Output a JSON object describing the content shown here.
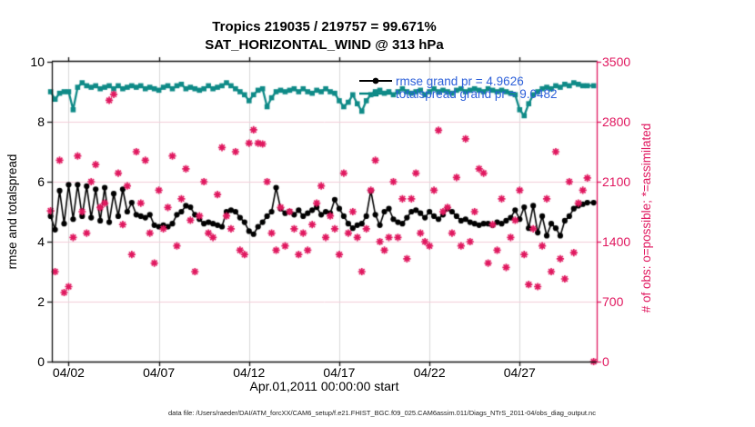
{
  "footer_text": "data file: /Users/raeder/DAI/ATM_forcXX/CAM6_setup/f.e21.FHIST_BGC.f09_025.CAM6assim.011/Diags_NTrS_2011-04/obs_diag_output.nc",
  "colors": {
    "rmse_line": "#000000",
    "totalspread_line": "#0e8a87",
    "obs_marker": "#e0185f",
    "right_axis": "#e0185f",
    "legend_text": "#2b5fd9",
    "grid_vertical": "#d9d9d9",
    "grid_horizontal": "#f2cdd9"
  },
  "chart_data": {
    "type": "line",
    "title": "Tropics 219035 / 219757 = 99.671%",
    "subtitle": "SAT_HORIZONTAL_WIND @ 313 hPa",
    "xlabel": "Apr.01,2011 00:00:00 start",
    "ylabel_left": "rmse and totalspread",
    "ylabel_right": "# of obs: o=possible; *=assimilated",
    "grid": true,
    "legend_position": "top-right-inside",
    "xlim": [
      1.07,
      31.27
    ],
    "ylim_left": [
      0,
      10
    ],
    "yticks_left": [
      0,
      2,
      4,
      6,
      8,
      10
    ],
    "ylim_right": [
      0,
      3500
    ],
    "yticks_right": [
      0,
      700,
      1400,
      2100,
      2800,
      3500
    ],
    "xticks": [
      {
        "day": 2,
        "label": "04/02"
      },
      {
        "day": 7,
        "label": "04/07"
      },
      {
        "day": 12,
        "label": "04/12"
      },
      {
        "day": 17,
        "label": "04/17"
      },
      {
        "day": 22,
        "label": "04/22"
      },
      {
        "day": 27,
        "label": "04/27"
      }
    ],
    "x_unit": "day of April 2011, 6-hourly bins",
    "x": [
      1,
      1.25,
      1.5,
      1.75,
      2,
      2.25,
      2.5,
      2.75,
      3,
      3.25,
      3.5,
      3.75,
      4,
      4.25,
      4.5,
      4.75,
      5,
      5.25,
      5.5,
      5.75,
      6,
      6.25,
      6.5,
      6.75,
      7,
      7.25,
      7.5,
      7.75,
      8,
      8.25,
      8.5,
      8.75,
      9,
      9.25,
      9.5,
      9.75,
      10,
      10.25,
      10.5,
      10.75,
      11,
      11.25,
      11.5,
      11.75,
      12,
      12.25,
      12.5,
      12.75,
      13,
      13.25,
      13.5,
      13.75,
      14,
      14.25,
      14.5,
      14.75,
      15,
      15.25,
      15.5,
      15.75,
      16,
      16.25,
      16.5,
      16.75,
      17,
      17.25,
      17.5,
      17.75,
      18,
      18.25,
      18.5,
      18.75,
      19,
      19.25,
      19.5,
      19.75,
      20,
      20.25,
      20.5,
      20.75,
      21,
      21.25,
      21.5,
      21.75,
      22,
      22.25,
      22.5,
      22.75,
      23,
      23.25,
      23.5,
      23.75,
      24,
      24.25,
      24.5,
      24.75,
      25,
      25.25,
      25.5,
      25.75,
      26,
      26.25,
      26.5,
      26.75,
      27,
      27.25,
      27.5,
      27.75,
      28,
      28.25,
      28.5,
      28.75,
      29,
      29.25,
      29.5,
      29.75,
      30,
      30.25,
      30.5,
      30.75,
      31.1
    ],
    "series": [
      {
        "name": "totalspread",
        "legend_label": "totalspread grand pr = 9.0482",
        "grand_mean": 9.0482,
        "axis": "left",
        "color": "#0e8a87",
        "marker": "square",
        "line": true,
        "values": [
          9.0,
          8.75,
          8.95,
          9.0,
          9.0,
          8.4,
          9.15,
          9.3,
          9.2,
          9.15,
          9.2,
          9.1,
          9.15,
          9.2,
          9.1,
          9.2,
          9.1,
          9.15,
          9.2,
          9.15,
          9.2,
          9.1,
          9.15,
          9.1,
          9.05,
          9.15,
          9.2,
          9.1,
          9.2,
          9.25,
          9.1,
          9.15,
          9.1,
          9.05,
          9.1,
          9.2,
          9.1,
          9.15,
          9.2,
          9.3,
          9.2,
          9.1,
          9.0,
          8.9,
          8.7,
          8.9,
          9.05,
          9.1,
          8.5,
          8.8,
          9.0,
          9.05,
          9.0,
          9.05,
          9.1,
          9.0,
          9.1,
          9.0,
          8.95,
          9.05,
          9.0,
          9.1,
          9.0,
          8.95,
          8.7,
          8.5,
          8.65,
          8.9,
          8.6,
          8.35,
          8.7,
          8.9,
          9.0,
          9.05,
          8.95,
          9.0,
          8.9,
          9.0,
          9.1,
          9.0,
          8.95,
          9.0,
          9.05,
          8.9,
          9.0,
          9.1,
          9.0,
          9.05,
          9.0,
          8.95,
          9.05,
          9.1,
          9.0,
          9.05,
          9.1,
          9.05,
          9.0,
          9.1,
          9.05,
          9.0,
          9.05,
          9.0,
          8.95,
          8.9,
          8.4,
          8.2,
          8.6,
          8.9,
          9.0,
          9.1,
          9.15,
          9.1,
          9.2,
          9.15,
          9.25,
          9.2,
          9.3,
          9.25,
          9.2,
          9.2,
          9.2
        ]
      },
      {
        "name": "rmse",
        "legend_label": "rmse grand pr = 4.9626",
        "grand_mean": 4.9626,
        "axis": "left",
        "color": "#000000",
        "marker": "circle",
        "line": true,
        "values": [
          4.85,
          4.4,
          5.7,
          4.6,
          5.9,
          4.75,
          5.9,
          4.85,
          5.85,
          4.8,
          5.75,
          4.7,
          5.8,
          4.65,
          5.6,
          4.85,
          5.75,
          5.0,
          5.3,
          4.9,
          4.85,
          4.8,
          4.9,
          4.55,
          4.5,
          4.55,
          4.5,
          4.6,
          4.9,
          5.0,
          5.2,
          5.15,
          4.9,
          4.75,
          4.6,
          4.65,
          4.6,
          4.55,
          4.5,
          5.0,
          5.05,
          5.0,
          4.8,
          4.65,
          4.35,
          4.25,
          4.5,
          4.65,
          4.85,
          5.0,
          5.8,
          5.1,
          4.95,
          5.0,
          4.9,
          5.05,
          4.85,
          4.95,
          5.05,
          5.15,
          4.9,
          5.0,
          4.95,
          5.4,
          5.1,
          4.85,
          4.6,
          4.45,
          4.55,
          4.6,
          4.85,
          5.7,
          4.9,
          4.55,
          5.0,
          5.1,
          4.75,
          4.65,
          4.6,
          4.8,
          5.0,
          5.05,
          4.95,
          4.8,
          5.0,
          4.85,
          4.75,
          4.9,
          5.1,
          5.0,
          4.85,
          4.7,
          4.75,
          4.65,
          4.6,
          4.55,
          4.6,
          4.6,
          4.55,
          4.65,
          4.6,
          4.7,
          4.8,
          5.05,
          4.75,
          5.15,
          4.45,
          5.2,
          4.3,
          4.85,
          4.2,
          4.6,
          4.45,
          4.2,
          4.7,
          4.85,
          5.1,
          5.2,
          5.25,
          5.3,
          5.3
        ]
      },
      {
        "name": "obs_assimilated",
        "legend_label": "",
        "axis": "right",
        "color": "#e0185f",
        "marker": "asterisk",
        "line": false,
        "values": [
          1760,
          1050,
          2350,
          806,
          875,
          1450,
          2400,
          1750,
          1500,
          2100,
          2300,
          1800,
          1850,
          3050,
          3120,
          2200,
          1600,
          2050,
          1250,
          2450,
          1850,
          2350,
          1500,
          1150,
          2000,
          1550,
          1800,
          2400,
          1350,
          1900,
          2250,
          1650,
          1050,
          1700,
          2100,
          1500,
          1450,
          1950,
          2500,
          1700,
          1550,
          2450,
          1300,
          1250,
          2550,
          2705,
          2550,
          2540,
          2100,
          1500,
          1300,
          1800,
          1350,
          1750,
          1550,
          1250,
          1500,
          1300,
          1600,
          1850,
          2050,
          1450,
          1700,
          1550,
          1250,
          2200,
          1500,
          1750,
          1450,
          1050,
          1550,
          2000,
          2350,
          1400,
          1300,
          1450,
          2100,
          1450,
          1900,
          1200,
          1900,
          2200,
          1500,
          1400,
          1350,
          2000,
          2700,
          1750,
          1800,
          1500,
          2150,
          1350,
          2600,
          1400,
          1750,
          2250,
          2200,
          1150,
          1600,
          1300,
          1900,
          1100,
          1450,
          1650,
          2000,
          1250,
          900,
          1550,
          875,
          1350,
          1900,
          1050,
          2450,
          1200,
          965,
          2100,
          1272,
          1850,
          2000,
          2143,
          0
        ]
      }
    ]
  }
}
